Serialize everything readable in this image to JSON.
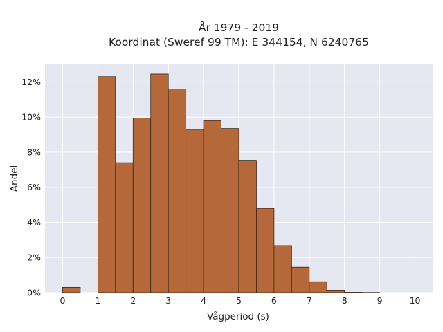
{
  "chart_data": {
    "type": "bar",
    "title_lines": [
      "År 1979 - 2019",
      "Koordinat (Sweref 99 TM): E 344154, N 6240765"
    ],
    "xlabel": "Vågperiod (s)",
    "ylabel": "Andel",
    "xlim": [
      -0.5,
      10.5
    ],
    "ylim": [
      0,
      0.13
    ],
    "x_ticks": [
      0,
      1,
      2,
      3,
      4,
      5,
      6,
      7,
      8,
      9,
      10
    ],
    "x_tick_labels": [
      "0",
      "1",
      "2",
      "3",
      "4",
      "5",
      "6",
      "7",
      "8",
      "9",
      "10"
    ],
    "y_ticks": [
      0,
      0.02,
      0.04,
      0.06,
      0.08,
      0.1,
      0.12
    ],
    "y_tick_labels": [
      "0%",
      "2%",
      "4%",
      "6%",
      "8%",
      "10%",
      "12%"
    ],
    "bin_width": 0.5,
    "bins": [
      {
        "x0": 0.0,
        "x1": 0.5,
        "value": 0.003
      },
      {
        "x0": 1.0,
        "x1": 1.5,
        "value": 0.123
      },
      {
        "x0": 1.5,
        "x1": 2.0,
        "value": 0.074
      },
      {
        "x0": 2.0,
        "x1": 2.5,
        "value": 0.0995
      },
      {
        "x0": 2.5,
        "x1": 3.0,
        "value": 0.1245
      },
      {
        "x0": 3.0,
        "x1": 3.5,
        "value": 0.116
      },
      {
        "x0": 3.5,
        "x1": 4.0,
        "value": 0.093
      },
      {
        "x0": 4.0,
        "x1": 4.5,
        "value": 0.098
      },
      {
        "x0": 4.5,
        "x1": 5.0,
        "value": 0.0935
      },
      {
        "x0": 5.0,
        "x1": 5.5,
        "value": 0.075
      },
      {
        "x0": 5.5,
        "x1": 6.0,
        "value": 0.048
      },
      {
        "x0": 6.0,
        "x1": 6.5,
        "value": 0.0268
      },
      {
        "x0": 6.5,
        "x1": 7.0,
        "value": 0.0145
      },
      {
        "x0": 7.0,
        "x1": 7.5,
        "value": 0.0062
      },
      {
        "x0": 7.5,
        "x1": 8.0,
        "value": 0.0014
      },
      {
        "x0": 8.0,
        "x1": 8.5,
        "value": 0.0002
      },
      {
        "x0": 8.5,
        "x1": 9.0,
        "value": 0.0001
      }
    ],
    "grid": true,
    "colors": {
      "bar_fill": "#b5693a",
      "bar_stroke": "#3d2416",
      "plot_background": "#e5e8f0",
      "grid": "#ffffff"
    }
  }
}
